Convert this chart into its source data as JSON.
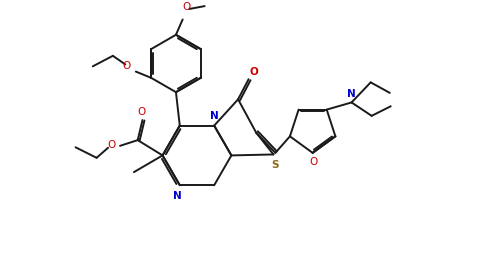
{
  "bg": "#ffffff",
  "lc": "#1a1a1a",
  "nc": "#0000cd",
  "oc": "#cc0000",
  "sc": "#8B6914",
  "lw": 1.4,
  "fig_w": 4.8,
  "fig_h": 2.78,
  "dpi": 100,
  "xlim": [
    0,
    10
  ],
  "ylim": [
    0,
    5.78
  ]
}
